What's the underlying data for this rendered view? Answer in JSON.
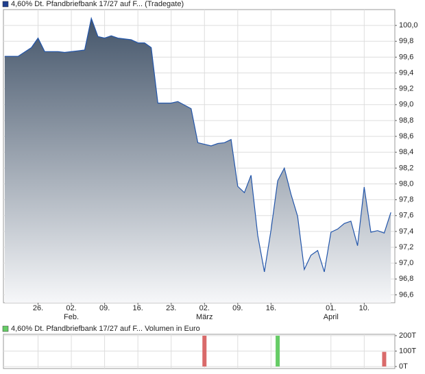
{
  "chart_data": [
    {
      "type": "area",
      "legend": "4,60% Dt. Pfandbriefbank 17/27 auf F... (Tradegate)",
      "legend_color": "#1f3f8f",
      "color": "#2255aa",
      "x": [
        0,
        2,
        4,
        5,
        6,
        8,
        9,
        11,
        12,
        13,
        14,
        15,
        16,
        17,
        19,
        20,
        21,
        22,
        23,
        25,
        26,
        28,
        29,
        31,
        32,
        33,
        34,
        35,
        36,
        37,
        38,
        39,
        40,
        41,
        42,
        43,
        44,
        45,
        46,
        47,
        48,
        49,
        50,
        51,
        52,
        53,
        54,
        55,
        56,
        57,
        58
      ],
      "values": [
        99.61,
        99.61,
        99.72,
        99.84,
        99.67,
        99.67,
        99.66,
        99.68,
        99.69,
        100.09,
        99.86,
        99.84,
        99.87,
        99.84,
        99.82,
        99.78,
        99.78,
        99.72,
        99.02,
        99.02,
        99.04,
        98.95,
        98.52,
        98.48,
        98.51,
        98.52,
        98.56,
        97.97,
        97.89,
        98.11,
        97.35,
        96.89,
        97.42,
        98.04,
        98.2,
        97.87,
        97.59,
        96.92,
        97.1,
        97.16,
        96.89,
        97.39,
        97.43,
        97.5,
        97.53,
        97.22,
        97.96,
        97.39,
        97.41,
        97.38,
        97.64
      ],
      "xlim": [
        -0.2,
        58.6
      ],
      "ylim": [
        96.5,
        100.2
      ],
      "yticks": [
        {
          "value": 96.6,
          "label": "96,6"
        },
        {
          "value": 96.8,
          "label": "96,8"
        },
        {
          "value": 97.0,
          "label": "97,0"
        },
        {
          "value": 97.2,
          "label": "97,2"
        },
        {
          "value": 97.4,
          "label": "97,4"
        },
        {
          "value": 97.6,
          "label": "97,6"
        },
        {
          "value": 97.8,
          "label": "97,8"
        },
        {
          "value": 98.0,
          "label": "98,0"
        },
        {
          "value": 98.2,
          "label": "98,2"
        },
        {
          "value": 98.4,
          "label": "98,4"
        },
        {
          "value": 98.6,
          "label": "98,6"
        },
        {
          "value": 98.8,
          "label": "98,8"
        },
        {
          "value": 99.0,
          "label": "99,0"
        },
        {
          "value": 99.2,
          "label": "99,2"
        },
        {
          "value": 99.4,
          "label": "99,4"
        },
        {
          "value": 99.6,
          "label": "99,6"
        },
        {
          "value": 99.8,
          "label": "99,8"
        },
        {
          "value": 100.0,
          "label": "100,0"
        }
      ],
      "xticks": [
        {
          "value": 5,
          "label": "26."
        },
        {
          "value": 10,
          "label": "02."
        },
        {
          "value": 15,
          "label": "09."
        },
        {
          "value": 20,
          "label": "16."
        },
        {
          "value": 25,
          "label": "23."
        },
        {
          "value": 30,
          "label": "02."
        },
        {
          "value": 35,
          "label": "09."
        },
        {
          "value": 40,
          "label": "16."
        },
        {
          "value": 49,
          "label": "01."
        },
        {
          "value": 54,
          "label": "10."
        }
      ],
      "xticks_month": [
        {
          "value": 10,
          "label": "Feb."
        },
        {
          "value": 30,
          "label": "März"
        },
        {
          "value": 49,
          "label": "April"
        }
      ],
      "grid": true
    },
    {
      "type": "bar",
      "legend": "4,60% Dt. Pfandbriefbank 17/27 auf F... Volumen in Euro",
      "legend_color": "#66cc66",
      "x": [
        30,
        41,
        57
      ],
      "values": [
        200,
        200,
        95
      ],
      "colors": [
        "#d96a6a",
        "#66cc66",
        "#d96a6a"
      ],
      "xlim": [
        -0.2,
        58.6
      ],
      "ylim": [
        -13,
        209
      ],
      "yticks": [
        {
          "value": 0,
          "label": "0T"
        },
        {
          "value": 100,
          "label": "100T"
        },
        {
          "value": 200,
          "label": "200T"
        }
      ],
      "grid": true
    }
  ]
}
